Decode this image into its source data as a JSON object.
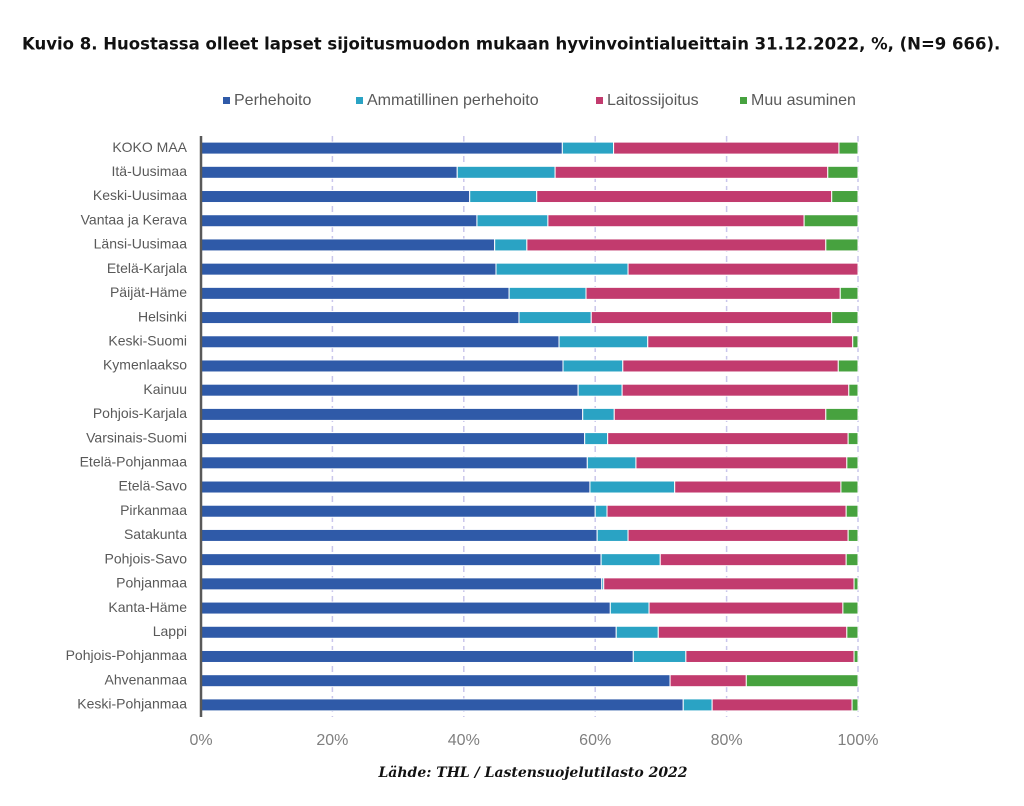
{
  "chart_data": {
    "type": "stacked-bar-horizontal",
    "title": "Kuvio 8. Huostassa olleet lapset sijoitusmuodon mukaan hyvinvointialueittain 31.12.2022, %, (N=9 666).",
    "source": "Lähde: THL / Lastensuojelutilasto 2022",
    "categories": [
      "KOKO MAA",
      "Itä-Uusimaa",
      "Keski-Uusimaa",
      "Vantaa ja Kerava",
      "Länsi-Uusimaa",
      "Etelä-Karjala",
      "Päijät-Häme",
      "Helsinki",
      "Keski-Suomi",
      "Kymenlaakso",
      "Kainuu",
      "Pohjois-Karjala",
      "Varsinais-Suomi",
      "Etelä-Pohjanmaa",
      "Etelä-Savo",
      "Pirkanmaa",
      "Satakunta",
      "Pohjois-Savo",
      "Pohjanmaa",
      "Kanta-Häme",
      "Lappi",
      "Pohjois-Pohjanmaa",
      "Ahvenanmaa",
      "Keski-Pohjanmaa"
    ],
    "series": [
      {
        "name": "Perhehoito",
        "color": "#2f5aa8",
        "values": [
          55.0,
          39.0,
          40.9,
          42.0,
          44.7,
          44.9,
          46.9,
          48.4,
          54.5,
          55.1,
          57.4,
          58.1,
          58.4,
          58.8,
          59.2,
          60.0,
          60.3,
          60.9,
          61.0,
          62.3,
          63.2,
          65.8,
          71.4,
          73.4
        ]
      },
      {
        "name": "Ammatillinen perhehoito",
        "color": "#2aa3c4",
        "values": [
          7.8,
          14.9,
          10.2,
          10.8,
          4.9,
          20.1,
          11.7,
          11.0,
          13.5,
          9.1,
          6.7,
          4.8,
          3.5,
          7.4,
          12.9,
          1.8,
          4.7,
          9.0,
          0.3,
          5.9,
          6.4,
          8.0,
          0,
          4.4
        ]
      },
      {
        "name": "Laitossijoitus",
        "color": "#c23b6e",
        "values": [
          34.3,
          41.5,
          44.9,
          39.0,
          45.5,
          35.0,
          38.7,
          36.6,
          31.2,
          32.8,
          34.5,
          32.2,
          36.6,
          32.1,
          25.3,
          36.4,
          33.5,
          28.3,
          38.1,
          29.5,
          28.7,
          25.6,
          11.6,
          21.3
        ]
      },
      {
        "name": "Muu asuminen",
        "color": "#47a23f",
        "values": [
          2.9,
          4.6,
          4.0,
          8.2,
          4.9,
          0,
          2.7,
          4.0,
          0.8,
          3.0,
          1.4,
          4.9,
          1.5,
          1.7,
          2.6,
          1.8,
          1.5,
          1.8,
          0.6,
          2.3,
          1.7,
          0.6,
          17.0,
          0.9
        ]
      }
    ],
    "xlim": [
      0,
      100
    ],
    "xticks": [
      {
        "value": 0,
        "label": "0%"
      },
      {
        "value": 20,
        "label": "20%"
      },
      {
        "value": 40,
        "label": "40%"
      },
      {
        "value": 60,
        "label": "60%"
      },
      {
        "value": 80,
        "label": "80%"
      },
      {
        "value": 100,
        "label": "100%"
      }
    ],
    "grid": true,
    "legend": "top"
  }
}
